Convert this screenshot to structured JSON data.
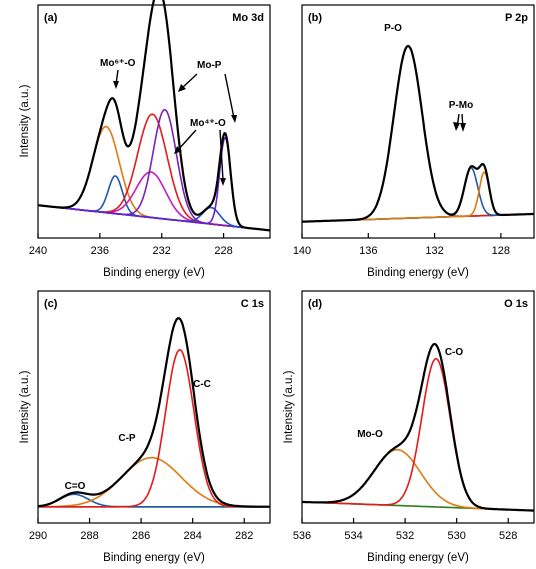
{
  "chart_data": [
    {
      "type": "line",
      "panel": "(a)",
      "title": "Mo 3d",
      "xlabel": "Binding energy (eV)",
      "ylabel": "Intensity (a.u.)",
      "xlim": [
        240,
        225
      ],
      "x_reversed": true,
      "xticks": [
        240,
        236,
        232,
        228
      ],
      "series": [
        {
          "color": "#2e7d1f",
          "line": "background",
          "peaks": [],
          "base": [
            [
              240,
              0.085
            ],
            [
              225,
              -0.045
            ]
          ]
        },
        {
          "color": "#e07a10",
          "peaks": [
            [
              235.6,
              0.445,
              0.85
            ]
          ]
        },
        {
          "color": "#1f5aa8",
          "peaks": [
            [
              235.0,
              0.195,
              0.45
            ]
          ]
        },
        {
          "color": "#c01cc0",
          "peaks": [
            [
              232.7,
              0.235,
              0.95
            ]
          ]
        },
        {
          "color": "#e41a1c",
          "peaks": [
            [
              232.6,
              0.535,
              0.95
            ]
          ]
        },
        {
          "color": "#7b22b8",
          "peaks": [
            [
              231.8,
              0.565,
              0.75
            ]
          ]
        },
        {
          "color": "#1f4fd8",
          "peaks": [
            [
              228.8,
              0.085,
              0.55
            ]
          ]
        },
        {
          "color": "#6a1fd0",
          "peaks": [
            [
              227.9,
              0.455,
              0.35
            ]
          ]
        },
        {
          "color": "#000000",
          "line": "envelope",
          "peaks": [
            [
              235.6,
              0.445,
              0.85
            ],
            [
              235.0,
              0.195,
              0.45
            ],
            [
              232.7,
              0.235,
              0.95
            ],
            [
              232.6,
              0.535,
              0.95
            ],
            [
              231.8,
              0.565,
              0.75
            ],
            [
              228.8,
              0.085,
              0.55
            ],
            [
              227.9,
              0.455,
              0.35
            ]
          ]
        }
      ],
      "annotations": [
        "Mo⁶⁺-O",
        "Mo-P",
        "Mo⁴⁺-O"
      ]
    },
    {
      "type": "line",
      "panel": "(b)",
      "title": "P 2p",
      "xlabel": "Binding energy (eV)",
      "xlim": [
        140,
        126
      ],
      "x_reversed": true,
      "xticks": [
        140,
        136,
        132,
        128
      ],
      "series": [
        {
          "color": "#2e7d1f",
          "line": "background",
          "peaks": [],
          "base": [
            [
              140,
              0.0
            ],
            [
              126,
              0.04
            ]
          ]
        },
        {
          "color": "#e41a1c",
          "peaks": [
            [
              133.6,
              0.89,
              0.85
            ]
          ]
        },
        {
          "color": "#1f5aa8",
          "peaks": [
            [
              129.8,
              0.25,
              0.4
            ]
          ]
        },
        {
          "color": "#e07a10",
          "peaks": [
            [
              129.0,
              0.225,
              0.3
            ]
          ]
        },
        {
          "color": "#000000",
          "line": "envelope",
          "peaks": [
            [
              133.6,
              0.89,
              0.85
            ],
            [
              129.8,
              0.25,
              0.4
            ],
            [
              129.0,
              0.225,
              0.3
            ]
          ]
        }
      ],
      "annotations": [
        "P-O",
        "P-Mo"
      ]
    },
    {
      "type": "line",
      "panel": "(c)",
      "title": "C 1s",
      "xlabel": "Binding energy (eV)",
      "ylabel": "Intensity (a.u.)",
      "xlim": [
        290,
        281
      ],
      "x_reversed": true,
      "xticks": [
        290,
        288,
        286,
        284,
        282
      ],
      "series": [
        {
          "color": "#2e7d1f",
          "line": "background",
          "peaks": [],
          "base": [
            [
              290,
              0.0
            ],
            [
              281,
              0.0
            ]
          ]
        },
        {
          "color": "#1f5aa8",
          "peaks": [
            [
              288.6,
              0.065,
              0.55
            ]
          ]
        },
        {
          "color": "#e07a10",
          "peaks": [
            [
              285.6,
              0.255,
              1.15
            ]
          ]
        },
        {
          "color": "#e41a1c",
          "peaks": [
            [
              284.5,
              0.815,
              0.55
            ]
          ]
        },
        {
          "color": "#000000",
          "line": "envelope",
          "peaks": [
            [
              288.6,
              0.065,
              0.55
            ],
            [
              285.6,
              0.255,
              1.15
            ],
            [
              284.5,
              0.815,
              0.55
            ]
          ]
        }
      ],
      "annotations": [
        "C=O",
        "C-P",
        "C-C"
      ]
    },
    {
      "type": "line",
      "panel": "(d)",
      "title": "O 1s",
      "xlabel": "Binding energy (eV)",
      "ylabel": "Intensity (a.u.)",
      "xlim": [
        536,
        527
      ],
      "x_reversed": true,
      "xticks": [
        536,
        534,
        532,
        530,
        528
      ],
      "series": [
        {
          "color": "#2e7d1f",
          "line": "background",
          "peaks": [],
          "base": [
            [
              536,
              0.025
            ],
            [
              527,
              -0.02
            ]
          ]
        },
        {
          "color": "#e07a10",
          "peaks": [
            [
              532.3,
              0.29,
              0.9
            ]
          ]
        },
        {
          "color": "#e41a1c",
          "peaks": [
            [
              530.8,
              0.77,
              0.55
            ]
          ]
        },
        {
          "color": "#000000",
          "line": "envelope",
          "peaks": [
            [
              532.3,
              0.29,
              0.9
            ],
            [
              530.8,
              0.77,
              0.55
            ]
          ]
        }
      ],
      "annotations": [
        "Mo-O",
        "C-O"
      ]
    }
  ]
}
